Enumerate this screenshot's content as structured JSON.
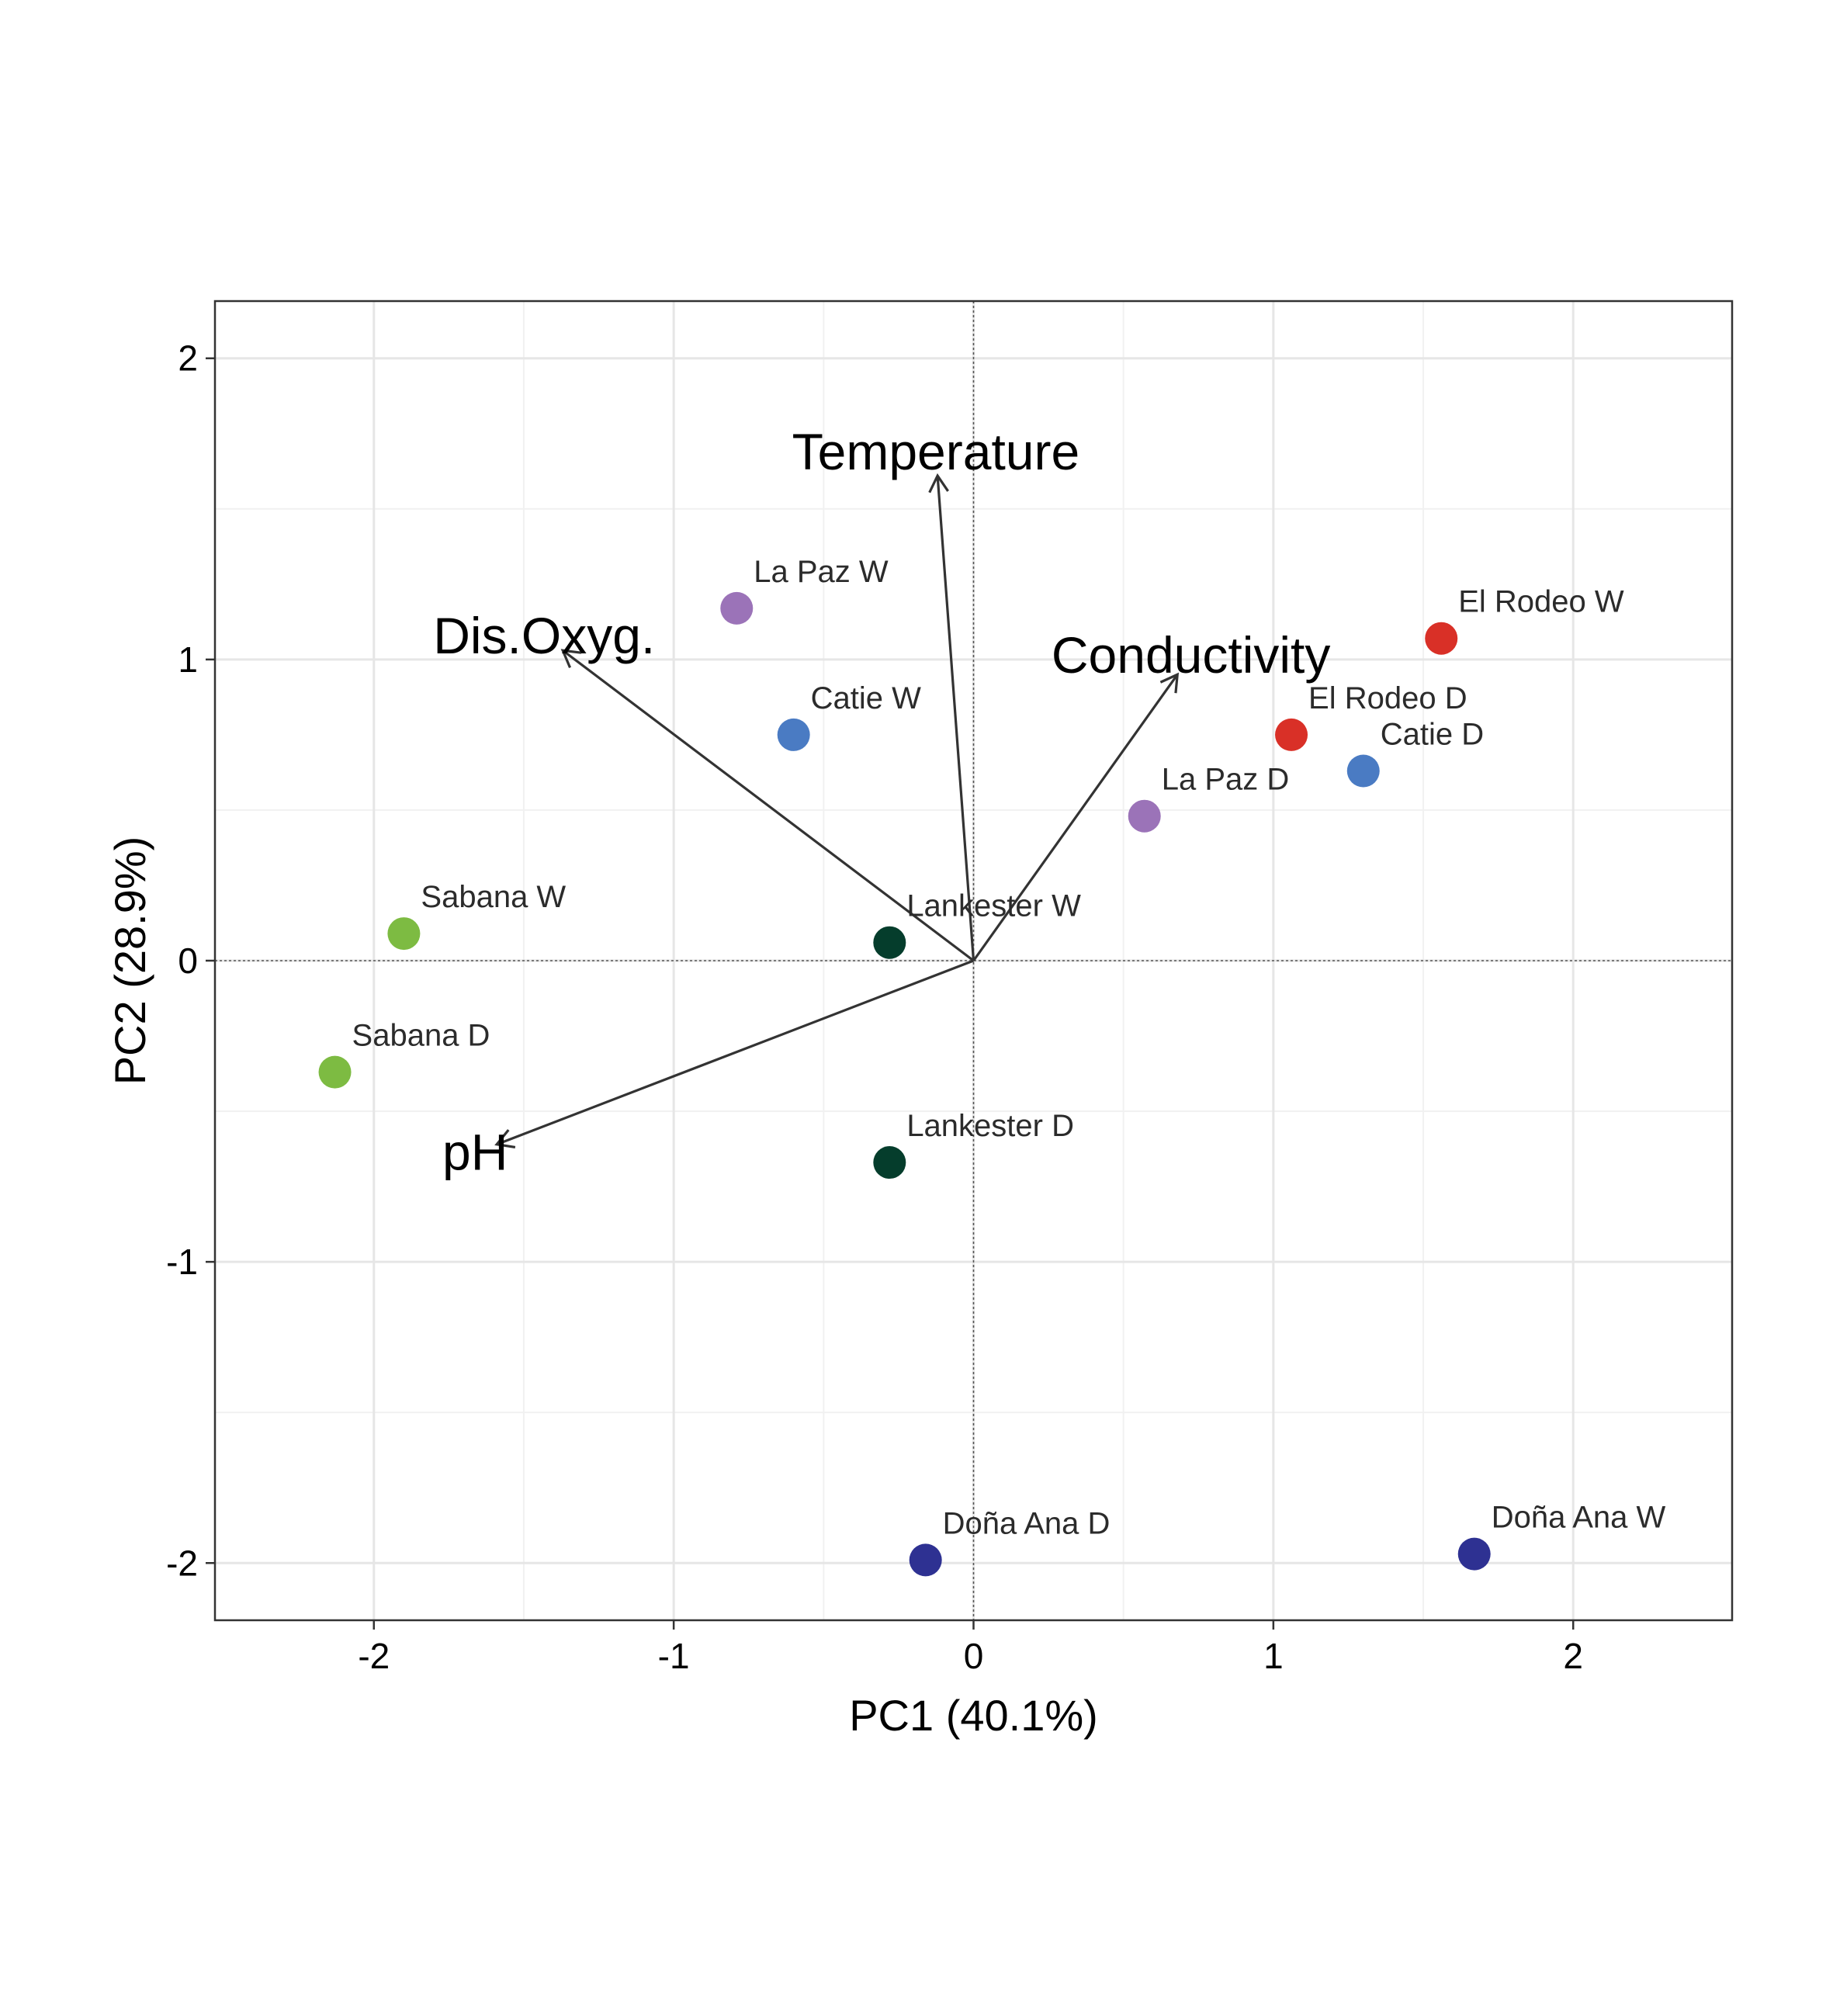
{
  "chart_data": {
    "type": "scatter",
    "subtype": "pca-biplot",
    "xlabel": "PC1 (40.1%)",
    "ylabel": "PC2 (28.9%)",
    "xlim": [
      -2.53,
      2.53
    ],
    "ylim": [
      -2.19,
      2.19
    ],
    "xticks": [
      -2,
      -1,
      0,
      1,
      2
    ],
    "yticks": [
      -2,
      -1,
      0,
      1,
      2
    ],
    "x_tick_labels": [
      "-2",
      "-1",
      "0",
      "1",
      "2"
    ],
    "y_tick_labels": [
      "-2",
      "-1",
      "0",
      "1",
      "2"
    ],
    "grid": true,
    "zero_lines": true,
    "points": [
      {
        "label": "El Rodeo W",
        "x": 1.56,
        "y": 1.07,
        "color": "#d93027"
      },
      {
        "label": "El Rodeo D",
        "x": 1.06,
        "y": 0.75,
        "color": "#d93027"
      },
      {
        "label": "Catie D",
        "x": 1.3,
        "y": 0.63,
        "color": "#4a7bc3"
      },
      {
        "label": "Catie W",
        "x": -0.6,
        "y": 0.75,
        "color": "#4a7bc3"
      },
      {
        "label": "La Paz W",
        "x": -0.79,
        "y": 1.17,
        "color": "#9b73b8"
      },
      {
        "label": "La Paz D",
        "x": 0.57,
        "y": 0.48,
        "color": "#9b73b8"
      },
      {
        "label": "Sabana W",
        "x": -1.9,
        "y": 0.09,
        "color": "#7dbb42"
      },
      {
        "label": "Sabana D",
        "x": -2.13,
        "y": -0.37,
        "color": "#7dbb42"
      },
      {
        "label": "Lankester W",
        "x": -0.28,
        "y": 0.06,
        "color": "#053d2c"
      },
      {
        "label": "Lankester D",
        "x": -0.28,
        "y": -0.67,
        "color": "#053d2c"
      },
      {
        "label": "Doña Ana D",
        "x": -0.16,
        "y": -1.99,
        "color": "#2e3192"
      },
      {
        "label": "Doña Ana W",
        "x": 1.67,
        "y": -1.97,
        "color": "#2e3192"
      }
    ],
    "loadings": [
      {
        "label": "Temperature",
        "x": -0.12,
        "y": 1.61
      },
      {
        "label": "Dis.Oxyg.",
        "x": -1.37,
        "y": 1.03
      },
      {
        "label": "Conductivity",
        "x": 0.68,
        "y": 0.95
      },
      {
        "label": "pH",
        "x": -1.59,
        "y": -0.61
      }
    ]
  }
}
